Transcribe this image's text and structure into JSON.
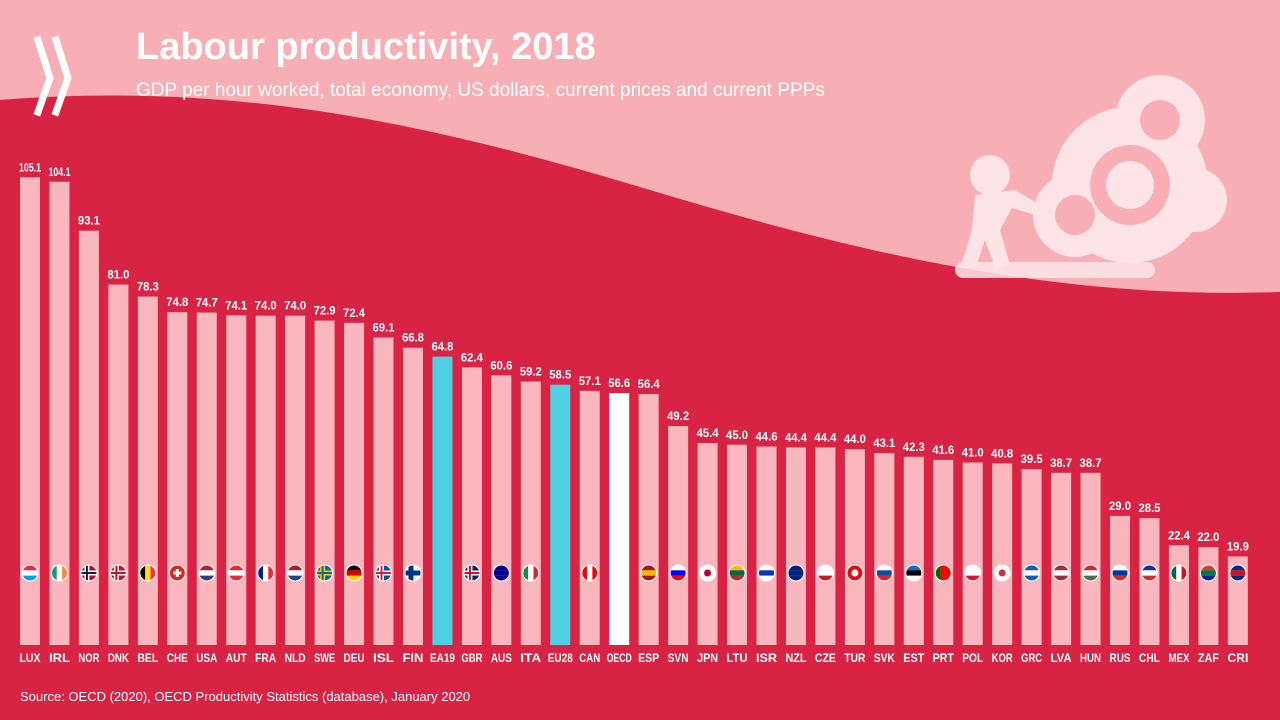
{
  "header": {
    "title": "Labour productivity, 2018",
    "subtitle": "GDP per hour worked, total economy, US dollars, current prices and current PPPs"
  },
  "footer": {
    "source": "Source: OECD (2020), OECD Productivity Statistics (database), January 2020"
  },
  "colors": {
    "background_top": "#f7aeb5",
    "background_bottom": "#d92344",
    "bar_default": "#f9b7bd",
    "bar_euro_area": "#4fd1e3",
    "bar_oecd": "#ffffff",
    "text": "#ffffff"
  },
  "chart_data": {
    "type": "bar",
    "categories": [
      "LUX",
      "IRL",
      "NOR",
      "DNK",
      "BEL",
      "CHE",
      "USA",
      "AUT",
      "FRA",
      "NLD",
      "SWE",
      "DEU",
      "ISL",
      "FIN",
      "EA19",
      "GBR",
      "AUS",
      "ITA",
      "EU28",
      "CAN",
      "OECD",
      "ESP",
      "SVN",
      "JPN",
      "LTU",
      "ISR",
      "NZL",
      "CZE",
      "TUR",
      "SVK",
      "EST",
      "PRT",
      "POL",
      "KOR",
      "GRC",
      "LVA",
      "HUN",
      "RUS",
      "CHL",
      "MEX",
      "ZAF",
      "CRI"
    ],
    "values": [
      105.1,
      104.1,
      93.1,
      81.0,
      78.3,
      74.8,
      74.7,
      74.1,
      74.0,
      74.0,
      72.9,
      72.4,
      69.1,
      66.8,
      64.8,
      62.4,
      60.6,
      59.2,
      58.5,
      57.1,
      56.6,
      56.4,
      49.2,
      45.4,
      45.0,
      44.6,
      44.4,
      44.4,
      44.0,
      43.1,
      42.3,
      41.6,
      41.0,
      40.8,
      39.5,
      38.7,
      38.7,
      29.0,
      28.5,
      22.4,
      22.0,
      19.9
    ],
    "value_labels": [
      "105.1",
      "104.1",
      "93.1",
      "81.0",
      "78.3",
      "74.8",
      "74.7",
      "74.1",
      "74.0",
      "74.0",
      "72.9",
      "72.4",
      "69.1",
      "66.8",
      "64.8",
      "62.4",
      "60.6",
      "59.2",
      "58.5",
      "57.1",
      "56.6",
      "56.4",
      "49.2",
      "45.4",
      "45.0",
      "44.6",
      "44.4",
      "44.4",
      "44.0",
      "43.1",
      "42.3",
      "41.6",
      "41.0",
      "40.8",
      "39.5",
      "38.7",
      "38.7",
      "29.0",
      "28.5",
      "22.4",
      "22.0",
      "19.9"
    ],
    "highlight": {
      "EA19": "euro_area",
      "EU28": "euro_area",
      "OECD": "oecd"
    },
    "flag_icons": [
      "flag-lux-icon",
      "flag-irl-icon",
      "flag-nor-icon",
      "flag-dnk-icon",
      "flag-bel-icon",
      "flag-che-icon",
      "flag-usa-icon",
      "flag-aut-icon",
      "flag-fra-icon",
      "flag-nld-icon",
      "flag-swe-icon",
      "flag-deu-icon",
      "flag-isl-icon",
      "flag-fin-icon",
      "",
      "flag-gbr-icon",
      "flag-aus-icon",
      "flag-ita-icon",
      "",
      "flag-can-icon",
      "flag-oecd-icon",
      "flag-esp-icon",
      "flag-svn-icon",
      "flag-jpn-icon",
      "flag-ltu-icon",
      "flag-isr-icon",
      "flag-nzl-icon",
      "flag-cze-icon",
      "flag-tur-icon",
      "flag-svk-icon",
      "flag-est-icon",
      "flag-prt-icon",
      "flag-pol-icon",
      "flag-kor-icon",
      "flag-grc-icon",
      "flag-lva-icon",
      "flag-hun-icon",
      "flag-rus-icon",
      "flag-chl-icon",
      "flag-mex-icon",
      "flag-zaf-icon",
      "flag-cri-icon"
    ],
    "ylim": [
      0,
      110
    ],
    "grid": false,
    "legend": "none"
  }
}
